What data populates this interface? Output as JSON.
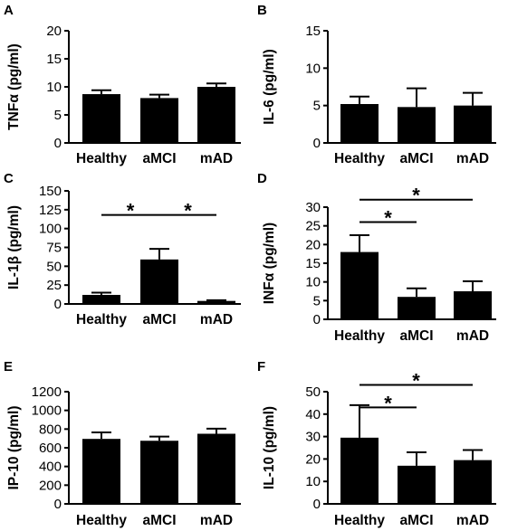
{
  "chart_data": [
    {
      "type": "bar",
      "panel": "A",
      "ylabel": "TNFα (pg/ml)",
      "ylim": [
        0,
        20
      ],
      "yticks": [
        "0",
        "5",
        "10",
        "15",
        "20"
      ],
      "categories": [
        "Healthy",
        "aMCI",
        "mAD"
      ],
      "values": [
        8.7,
        8.0,
        10.0
      ],
      "errors": [
        0.7,
        0.6,
        0.6
      ],
      "significance": []
    },
    {
      "type": "bar",
      "panel": "B",
      "ylabel": "IL-6 (pg/ml)",
      "ylim": [
        0,
        15
      ],
      "yticks": [
        "0",
        "5",
        "10",
        "15"
      ],
      "categories": [
        "Healthy",
        "aMCI",
        "mAD"
      ],
      "values": [
        5.2,
        4.8,
        5.0
      ],
      "errors": [
        1.0,
        2.5,
        1.7
      ],
      "significance": []
    },
    {
      "type": "bar",
      "panel": "C",
      "ylabel": "IL-1β (pg/ml)",
      "ylim": [
        0,
        150
      ],
      "yticks": [
        "0",
        "25",
        "50",
        "75",
        "100",
        "125",
        "150"
      ],
      "categories": [
        "Healthy",
        "aMCI",
        "mAD"
      ],
      "values": [
        12,
        59,
        4
      ],
      "errors": [
        3,
        14,
        1
      ],
      "significance": [
        {
          "from": 0,
          "to": 1,
          "label": "*",
          "y": 118
        },
        {
          "from": 1,
          "to": 2,
          "label": "*",
          "y": 118
        }
      ]
    },
    {
      "type": "bar",
      "panel": "D",
      "ylabel": "INFα (pg/ml)",
      "ylim": [
        0,
        30
      ],
      "yticks": [
        "0",
        "5",
        "10",
        "15",
        "20",
        "25",
        "30"
      ],
      "categories": [
        "Healthy",
        "aMCI",
        "mAD"
      ],
      "values": [
        18,
        6,
        7.5
      ],
      "errors": [
        4.5,
        2.3,
        2.7
      ],
      "significance": [
        {
          "from": 0,
          "to": 1,
          "label": "*",
          "y": 26
        },
        {
          "from": 0,
          "to": 2,
          "label": "*",
          "y": 32
        }
      ]
    },
    {
      "type": "bar",
      "panel": "E",
      "ylabel": "IP-10 (pg/ml)",
      "ylim": [
        0,
        1200
      ],
      "yticks": [
        "0",
        "200",
        "400",
        "600",
        "800",
        "1000",
        "1200"
      ],
      "categories": [
        "Healthy",
        "aMCI",
        "mAD"
      ],
      "values": [
        695,
        675,
        750
      ],
      "errors": [
        70,
        45,
        55
      ],
      "significance": []
    },
    {
      "type": "bar",
      "panel": "F",
      "ylabel": "IL-10 (pg/ml)",
      "ylim": [
        0,
        50
      ],
      "yticks": [
        "0",
        "10",
        "20",
        "30",
        "40",
        "50"
      ],
      "categories": [
        "Healthy",
        "aMCI",
        "mAD"
      ],
      "values": [
        29.5,
        17,
        19.5
      ],
      "errors": [
        14.5,
        6,
        4.5
      ],
      "significance": [
        {
          "from": 0,
          "to": 1,
          "label": "*",
          "y": 43
        },
        {
          "from": 0,
          "to": 2,
          "label": "*",
          "y": 53
        }
      ]
    }
  ]
}
